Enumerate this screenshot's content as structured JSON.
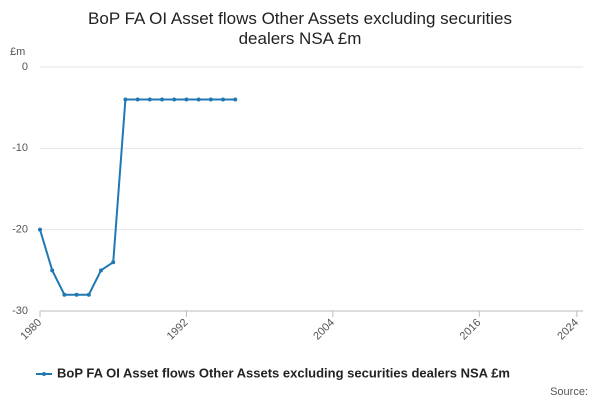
{
  "chart_data": {
    "type": "line",
    "title": "BoP FA OI Asset flows Other Assets excluding securities dealers NSA £m",
    "y_label": "£m",
    "source": "Source:",
    "x": [
      1980,
      1981,
      1982,
      1983,
      1984,
      1985,
      1986,
      1987,
      1988,
      1989,
      1990,
      1991,
      1992,
      1993,
      1994,
      1995,
      1996
    ],
    "series": [
      {
        "name": "BoP FA OI Asset flows Other Assets excluding securities dealers NSA £m",
        "color": "#2078b4",
        "values": [
          -20,
          -25,
          -28,
          -28,
          -28,
          -25,
          -24,
          -4,
          -4,
          -4,
          -4,
          -4,
          -4,
          -4,
          -4,
          -4,
          -4
        ]
      }
    ],
    "xlim": [
      1980,
      2024.5
    ],
    "xticks": [
      1980,
      1992,
      2004,
      2016,
      2024
    ],
    "ylim": [
      -30,
      0
    ],
    "yticks": [
      0,
      -10,
      -20,
      -30
    ],
    "grid": true
  }
}
